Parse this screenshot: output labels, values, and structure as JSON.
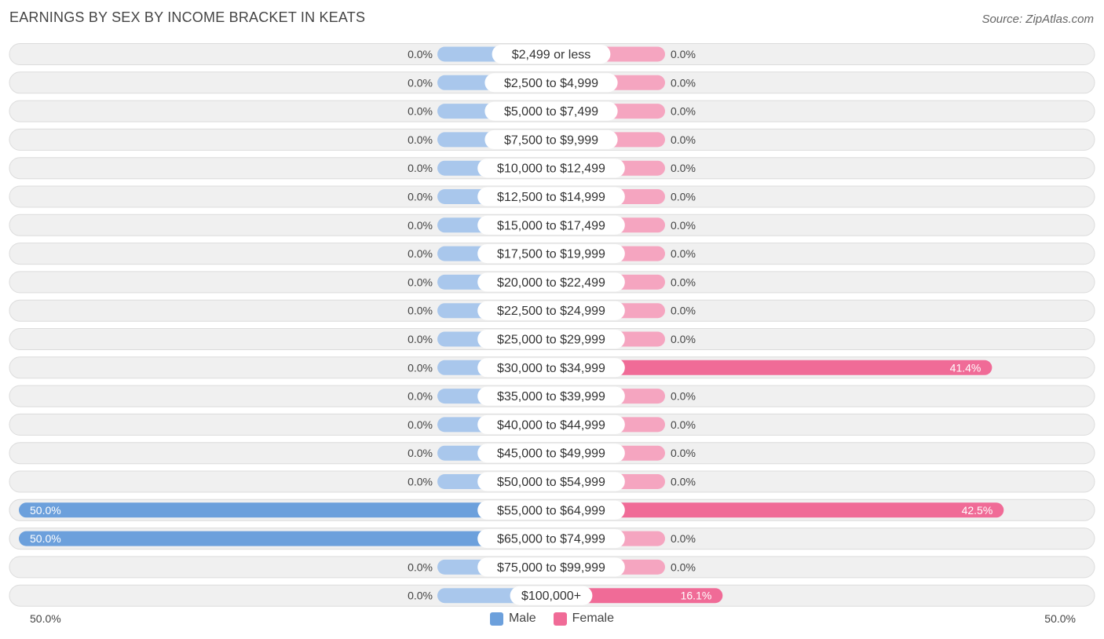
{
  "header": {
    "title": "EARNINGS BY SEX BY INCOME BRACKET IN KEATS",
    "source": "Source: ZipAtlas.com"
  },
  "axis": {
    "left_label": "50.0%",
    "right_label": "50.0%"
  },
  "legend": {
    "male_label": "Male",
    "female_label": "Female"
  },
  "colors": {
    "male_full": "#6ca0dc",
    "male_light": "#a9c7ec",
    "female_full": "#f06b97",
    "female_light": "#f5a5c0",
    "row_bg": "#f0f0f0",
    "row_border": "#dcdcdc"
  },
  "chart_data": {
    "type": "bar",
    "orientation": "horizontal-diverging",
    "title": "EARNINGS BY SEX BY INCOME BRACKET IN KEATS",
    "xlim": [
      -50,
      50
    ],
    "categories": [
      "$2,499 or less",
      "$2,500 to $4,999",
      "$5,000 to $7,499",
      "$7,500 to $9,999",
      "$10,000 to $12,499",
      "$12,500 to $14,999",
      "$15,000 to $17,499",
      "$17,500 to $19,999",
      "$20,000 to $22,499",
      "$22,500 to $24,999",
      "$25,000 to $29,999",
      "$30,000 to $34,999",
      "$35,000 to $39,999",
      "$40,000 to $44,999",
      "$45,000 to $49,999",
      "$50,000 to $54,999",
      "$55,000 to $64,999",
      "$65,000 to $74,999",
      "$75,000 to $99,999",
      "$100,000+"
    ],
    "series": [
      {
        "name": "Male",
        "values": [
          0,
          0,
          0,
          0,
          0,
          0,
          0,
          0,
          0,
          0,
          0,
          0,
          0,
          0,
          0,
          0,
          50.0,
          50.0,
          0,
          0
        ],
        "labels": [
          "0.0%",
          "0.0%",
          "0.0%",
          "0.0%",
          "0.0%",
          "0.0%",
          "0.0%",
          "0.0%",
          "0.0%",
          "0.0%",
          "0.0%",
          "0.0%",
          "0.0%",
          "0.0%",
          "0.0%",
          "0.0%",
          "50.0%",
          "50.0%",
          "0.0%",
          "0.0%"
        ]
      },
      {
        "name": "Female",
        "values": [
          0,
          0,
          0,
          0,
          0,
          0,
          0,
          0,
          0,
          0,
          0,
          41.4,
          0,
          0,
          0,
          0,
          42.5,
          0,
          0,
          16.1
        ],
        "labels": [
          "0.0%",
          "0.0%",
          "0.0%",
          "0.0%",
          "0.0%",
          "0.0%",
          "0.0%",
          "0.0%",
          "0.0%",
          "0.0%",
          "0.0%",
          "41.4%",
          "0.0%",
          "0.0%",
          "0.0%",
          "0.0%",
          "42.5%",
          "0.0%",
          "0.0%",
          "16.1%"
        ]
      }
    ],
    "legend": [
      "Male",
      "Female"
    ],
    "legend_position": "bottom-center"
  }
}
